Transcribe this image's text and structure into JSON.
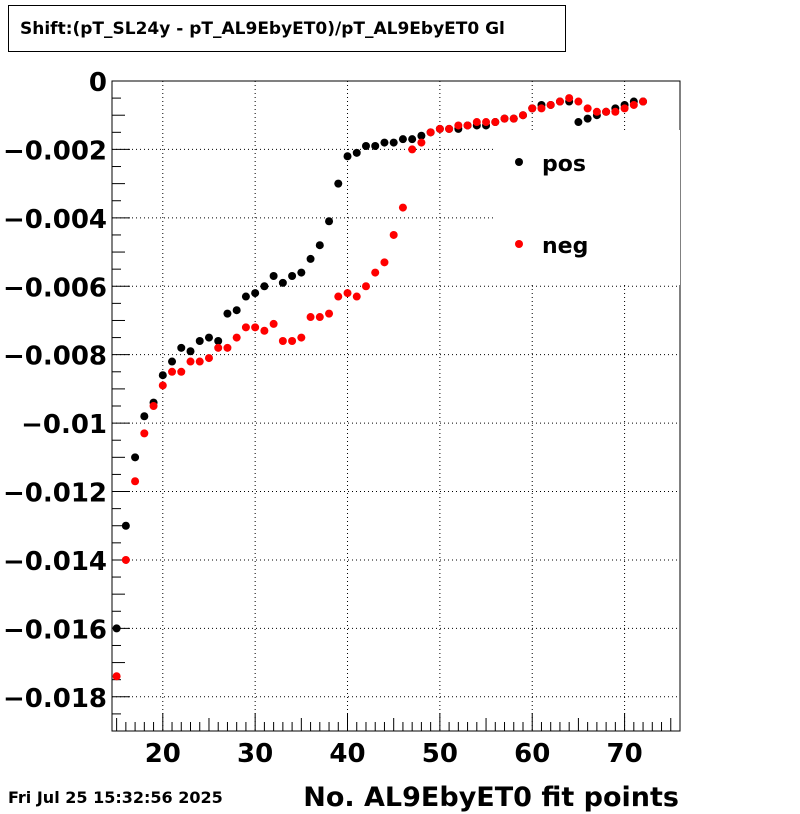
{
  "chart_data": {
    "type": "scatter",
    "title": "Shift:(pT_SL24y - pT_AL9EbyET0)/pT_AL9EbyET0 Gl",
    "xlabel": "No. AL9EbyET0 fit points",
    "ylabel": "",
    "xlim": [
      14.5,
      76
    ],
    "ylim": [
      -0.019,
      0
    ],
    "x_ticks": [
      20,
      30,
      40,
      50,
      60,
      70
    ],
    "x_tick_labels": [
      "20",
      "30",
      "40",
      "50",
      "60",
      "70"
    ],
    "y_ticks": [
      0,
      -0.002,
      -0.004,
      -0.006,
      -0.008,
      -0.01,
      -0.012,
      -0.014,
      -0.016,
      -0.018
    ],
    "y_tick_labels": [
      "0",
      "−0.002",
      "−0.004",
      "−0.006",
      "−0.008",
      "−0.01",
      "−0.012",
      "−0.014",
      "−0.016",
      "−0.018"
    ],
    "grid": true,
    "legend_position": "top-right",
    "series": [
      {
        "name": "pos",
        "color": "#000000",
        "points": [
          [
            15,
            -0.016
          ],
          [
            16,
            -0.013
          ],
          [
            17,
            -0.011
          ],
          [
            18,
            -0.0098
          ],
          [
            19,
            -0.0094
          ],
          [
            20,
            -0.0086
          ],
          [
            21,
            -0.0082
          ],
          [
            22,
            -0.0078
          ],
          [
            23,
            -0.0079
          ],
          [
            24,
            -0.0076
          ],
          [
            25,
            -0.0075
          ],
          [
            26,
            -0.0076
          ],
          [
            27,
            -0.0068
          ],
          [
            28,
            -0.0067
          ],
          [
            29,
            -0.0063
          ],
          [
            30,
            -0.0062
          ],
          [
            31,
            -0.006
          ],
          [
            32,
            -0.0057
          ],
          [
            33,
            -0.0059
          ],
          [
            34,
            -0.0057
          ],
          [
            35,
            -0.0056
          ],
          [
            36,
            -0.0052
          ],
          [
            37,
            -0.0048
          ],
          [
            38,
            -0.0041
          ],
          [
            39,
            -0.003
          ],
          [
            40,
            -0.0022
          ],
          [
            41,
            -0.0021
          ],
          [
            42,
            -0.0019
          ],
          [
            43,
            -0.0019
          ],
          [
            44,
            -0.0018
          ],
          [
            45,
            -0.0018
          ],
          [
            46,
            -0.0017
          ],
          [
            47,
            -0.0017
          ],
          [
            48,
            -0.0016
          ],
          [
            49,
            -0.0015
          ],
          [
            50,
            -0.0014
          ],
          [
            51,
            -0.0014
          ],
          [
            52,
            -0.0014
          ],
          [
            53,
            -0.0013
          ],
          [
            54,
            -0.0013
          ],
          [
            55,
            -0.0013
          ],
          [
            56,
            -0.0012
          ],
          [
            57,
            -0.0011
          ],
          [
            58,
            -0.0011
          ],
          [
            59,
            -0.001
          ],
          [
            60,
            -0.0008
          ],
          [
            61,
            -0.0007
          ],
          [
            62,
            -0.0007
          ],
          [
            63,
            -0.0006
          ],
          [
            64,
            -0.0006
          ],
          [
            65,
            -0.0012
          ],
          [
            66,
            -0.0011
          ],
          [
            67,
            -0.001
          ],
          [
            68,
            -0.0009
          ],
          [
            69,
            -0.0008
          ],
          [
            70,
            -0.0007
          ],
          [
            71,
            -0.0006
          ],
          [
            72,
            -0.0006
          ]
        ]
      },
      {
        "name": "neg",
        "color": "#ff0000",
        "points": [
          [
            15,
            -0.0174
          ],
          [
            16,
            -0.014
          ],
          [
            17,
            -0.0117
          ],
          [
            18,
            -0.0103
          ],
          [
            19,
            -0.0095
          ],
          [
            20,
            -0.0089
          ],
          [
            21,
            -0.0085
          ],
          [
            22,
            -0.0085
          ],
          [
            23,
            -0.0082
          ],
          [
            24,
            -0.0082
          ],
          [
            25,
            -0.0081
          ],
          [
            26,
            -0.0078
          ],
          [
            27,
            -0.0078
          ],
          [
            28,
            -0.0075
          ],
          [
            29,
            -0.0072
          ],
          [
            30,
            -0.0072
          ],
          [
            31,
            -0.0073
          ],
          [
            32,
            -0.0071
          ],
          [
            33,
            -0.0076
          ],
          [
            34,
            -0.0076
          ],
          [
            35,
            -0.0075
          ],
          [
            36,
            -0.0069
          ],
          [
            37,
            -0.0069
          ],
          [
            38,
            -0.0068
          ],
          [
            39,
            -0.0063
          ],
          [
            40,
            -0.0062
          ],
          [
            41,
            -0.0063
          ],
          [
            42,
            -0.006
          ],
          [
            43,
            -0.0056
          ],
          [
            44,
            -0.0053
          ],
          [
            45,
            -0.0045
          ],
          [
            46,
            -0.0037
          ],
          [
            47,
            -0.002
          ],
          [
            48,
            -0.0018
          ],
          [
            49,
            -0.0015
          ],
          [
            50,
            -0.0014
          ],
          [
            51,
            -0.0014
          ],
          [
            52,
            -0.0013
          ],
          [
            53,
            -0.0013
          ],
          [
            54,
            -0.0012
          ],
          [
            55,
            -0.0012
          ],
          [
            56,
            -0.0012
          ],
          [
            57,
            -0.0011
          ],
          [
            58,
            -0.0011
          ],
          [
            59,
            -0.001
          ],
          [
            60,
            -0.0008
          ],
          [
            61,
            -0.0008
          ],
          [
            62,
            -0.0007
          ],
          [
            63,
            -0.0006
          ],
          [
            64,
            -0.0005
          ],
          [
            65,
            -0.0006
          ],
          [
            66,
            -0.0008
          ],
          [
            67,
            -0.0009
          ],
          [
            68,
            -0.0009
          ],
          [
            69,
            -0.0009
          ],
          [
            70,
            -0.0008
          ],
          [
            71,
            -0.0007
          ],
          [
            72,
            -0.0006
          ]
        ]
      }
    ]
  },
  "footer": {
    "timestamp": "Fri Jul 25 15:32:56 2025"
  }
}
